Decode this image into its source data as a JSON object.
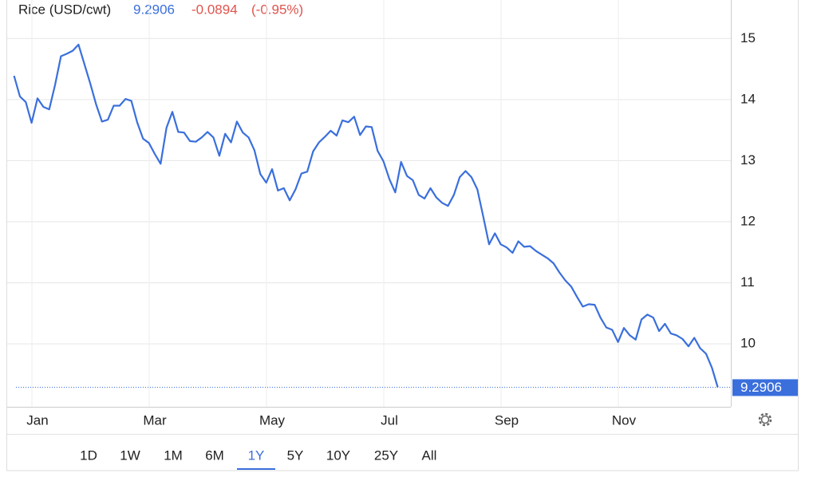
{
  "chart_data": {
    "type": "line",
    "title": "Rice (USD/cwt)",
    "change": -0.0894,
    "change_percent_label": "(-0.95%)",
    "categories": [
      null,
      null,
      null,
      null,
      "Jan",
      null,
      null,
      null,
      null,
      null,
      null,
      null,
      null,
      null,
      null,
      null,
      null,
      null,
      null,
      null,
      null,
      null,
      null,
      null,
      "Mar",
      null,
      null,
      null,
      null,
      null,
      null,
      null,
      null,
      null,
      null,
      null,
      null,
      null,
      null,
      null,
      null,
      null,
      null,
      null,
      "May",
      null,
      null,
      null,
      null,
      null,
      null,
      null,
      null,
      null,
      null,
      null,
      null,
      null,
      null,
      null,
      null,
      null,
      null,
      null,
      "Jul",
      null,
      null,
      null,
      null,
      null,
      null,
      null,
      null,
      null,
      null,
      null,
      null,
      null,
      null,
      null,
      null,
      null,
      null,
      null,
      "Sep",
      null,
      null,
      null,
      null,
      null,
      null,
      null,
      null,
      null,
      null,
      null,
      null,
      null,
      null,
      null,
      null,
      null,
      null,
      null,
      "Nov",
      null,
      null,
      null,
      null,
      null,
      null,
      null,
      null,
      null,
      null,
      null,
      null,
      null,
      null,
      null,
      null
    ],
    "values": [
      14.39,
      14.05,
      13.96,
      13.62,
      14.02,
      13.88,
      13.84,
      14.24,
      14.71,
      14.75,
      14.8,
      14.9,
      14.58,
      14.26,
      13.92,
      13.64,
      13.67,
      13.9,
      13.9,
      14.01,
      13.98,
      13.63,
      13.36,
      13.29,
      13.11,
      12.95,
      13.54,
      13.8,
      13.47,
      13.46,
      13.32,
      13.31,
      13.38,
      13.47,
      13.38,
      13.08,
      13.44,
      13.3,
      13.64,
      13.46,
      13.38,
      13.17,
      12.78,
      12.64,
      12.86,
      12.51,
      12.55,
      12.35,
      12.53,
      12.79,
      12.82,
      13.15,
      13.3,
      13.39,
      13.49,
      13.41,
      13.66,
      13.63,
      13.72,
      13.42,
      13.56,
      13.55,
      13.16,
      12.99,
      12.7,
      12.48,
      12.98,
      12.75,
      12.68,
      12.44,
      12.38,
      12.55,
      12.4,
      12.31,
      12.26,
      12.44,
      12.73,
      12.83,
      12.73,
      12.53,
      12.09,
      11.63,
      11.81,
      11.63,
      11.58,
      11.49,
      11.68,
      11.59,
      11.6,
      11.52,
      11.46,
      11.4,
      11.32,
      11.17,
      11.04,
      10.94,
      10.77,
      10.61,
      10.65,
      10.64,
      10.43,
      10.27,
      10.23,
      10.03,
      10.26,
      10.14,
      10.07,
      10.4,
      10.48,
      10.43,
      10.21,
      10.33,
      10.17,
      10.14,
      10.08,
      9.96,
      10.1,
      9.93,
      9.84,
      9.61,
      9.2906
    ],
    "color": "#3a6fdc",
    "ylim": [
      8.97,
      15.5
    ],
    "yticks": [
      10,
      11,
      12,
      13,
      14,
      15
    ],
    "grid": true,
    "range_selector": {
      "options": [
        "1D",
        "1W",
        "1M",
        "6M",
        "1Y",
        "5Y",
        "10Y",
        "25Y",
        "All"
      ],
      "active": 4
    }
  }
}
